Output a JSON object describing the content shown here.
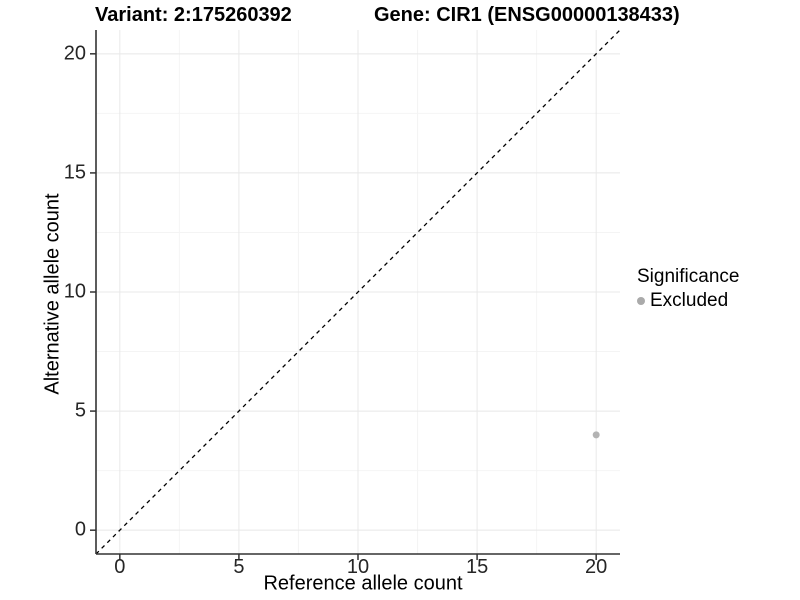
{
  "figure": {
    "title_left": "Variant: 2:175260392",
    "title_right": "Gene: CIR1 (ENSG00000138433)"
  },
  "chart_data": {
    "type": "scatter",
    "title": "Variant: 2:175260392   Gene: CIR1 (ENSG00000138433)",
    "xlabel": "Reference allele count",
    "ylabel": "Alternative allele count",
    "xlim": [
      -1,
      21
    ],
    "ylim": [
      -1,
      21
    ],
    "x_ticks": [
      0,
      5,
      10,
      15,
      20
    ],
    "y_ticks": [
      0,
      5,
      10,
      15,
      20
    ],
    "minor_ticks": [
      2.5,
      7.5,
      12.5,
      17.5
    ],
    "grid": "on",
    "reference_line": {
      "name": "identity-line",
      "style": "dashed",
      "from": [
        -1,
        -1
      ],
      "to": [
        21,
        21
      ]
    },
    "series": [
      {
        "name": "Excluded",
        "points": [
          {
            "x": 20,
            "y": 4
          }
        ],
        "color": "#b3b3b3"
      }
    ],
    "legend": {
      "title": "Significance",
      "position": "right",
      "items": [
        {
          "label": "Excluded",
          "color": "#aaaaaa"
        }
      ]
    },
    "colors": {
      "background": "#ffffff",
      "grid_major": "#e8e8e8",
      "grid_minor": "#f4f4f4",
      "axis_line": "#333333",
      "reference_line": "#000000",
      "tick_text": "#262626",
      "point": "#b3b3b3"
    }
  }
}
